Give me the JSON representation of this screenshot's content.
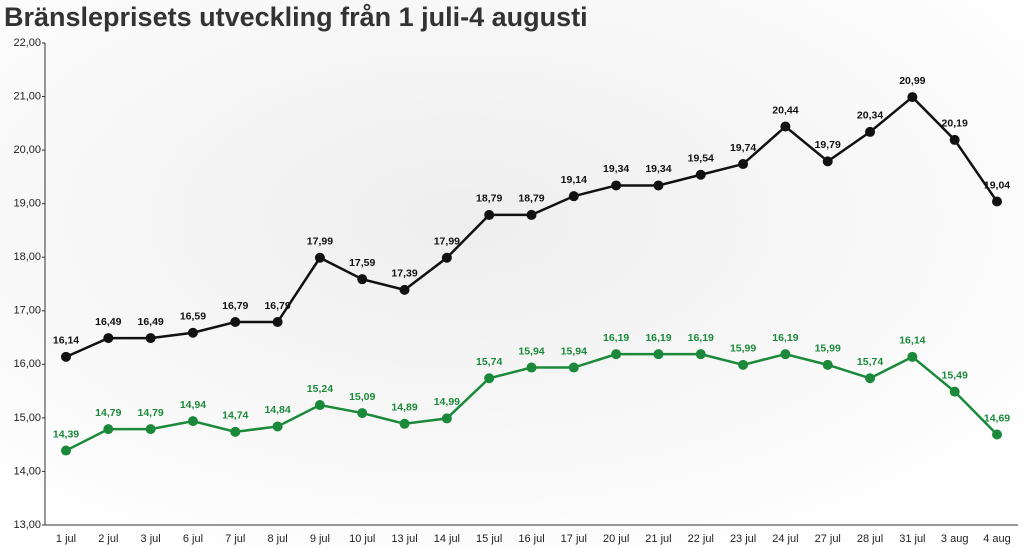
{
  "chart_data": {
    "type": "line",
    "title": "Bränsleprisets utveckling från 1 juli-4 augusti",
    "categories": [
      "1 jul",
      "2 jul",
      "3 jul",
      "6 jul",
      "7 jul",
      "8 jul",
      "9 jul",
      "10 jul",
      "13 jul",
      "14 jul",
      "15 jul",
      "16 jul",
      "17 jul",
      "20 jul",
      "21 jul",
      "22 jul",
      "23 jul",
      "24 jul",
      "27 jul",
      "28 jul",
      "31 jul",
      "3 aug",
      "4 aug"
    ],
    "series": [
      {
        "color": "#111111",
        "values": [
          16.14,
          16.49,
          16.49,
          16.59,
          16.79,
          16.79,
          17.99,
          17.59,
          17.39,
          17.99,
          18.79,
          18.79,
          19.14,
          19.34,
          19.34,
          19.54,
          19.74,
          20.44,
          19.79,
          20.34,
          20.99,
          20.19,
          19.04
        ],
        "value_labels": [
          "16,14",
          "16,49",
          "16,49",
          "16,59",
          "16,79",
          "16,79",
          "17,99",
          "17,59",
          "17,39",
          "17,99",
          "18,79",
          "18,79",
          "19,14",
          "19,34",
          "19,34",
          "19,54",
          "19,74",
          "20,44",
          "19,79",
          "20,34",
          "20,99",
          "20,19",
          "19,04"
        ]
      },
      {
        "color": "#1a8a3a",
        "values": [
          14.39,
          14.79,
          14.79,
          14.94,
          14.74,
          14.84,
          15.24,
          15.09,
          14.89,
          14.99,
          15.74,
          15.94,
          15.94,
          16.19,
          16.19,
          16.19,
          15.99,
          16.19,
          15.99,
          15.74,
          16.14,
          15.49,
          14.69
        ],
        "value_labels": [
          "14,39",
          "14,79",
          "14,79",
          "14,94",
          "14,74",
          "14,84",
          "15,24",
          "15,09",
          "14,89",
          "14,99",
          "15,74",
          "15,94",
          "15,94",
          "16,19",
          "16,19",
          "16,19",
          "15,99",
          "16,19",
          "15,99",
          "15,74",
          "16,14",
          "15,49",
          "14,69"
        ]
      }
    ],
    "ylim": [
      13,
      22
    ],
    "yticks": [
      {
        "value": 13,
        "label": "13,00"
      },
      {
        "value": 14,
        "label": "14,00"
      },
      {
        "value": 15,
        "label": "15,00"
      },
      {
        "value": 16,
        "label": "16,00"
      },
      {
        "value": 17,
        "label": "17,00"
      },
      {
        "value": 18,
        "label": "18,00"
      },
      {
        "value": 19,
        "label": "19,00"
      },
      {
        "value": 20,
        "label": "20,00"
      },
      {
        "value": 21,
        "label": "21,00"
      },
      {
        "value": 22,
        "label": "22,00"
      }
    ],
    "grid": false
  }
}
